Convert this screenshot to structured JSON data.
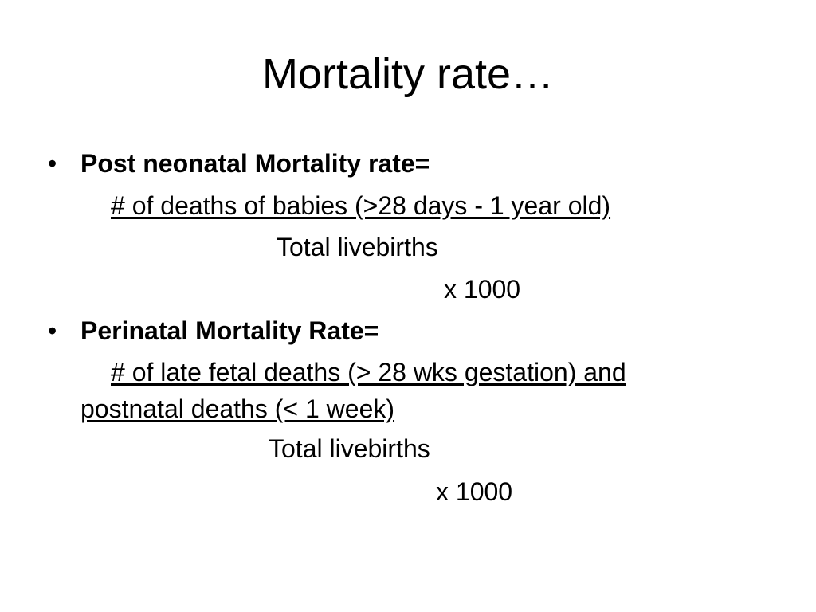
{
  "slide": {
    "title": "Mortality rate…",
    "bullet_glyph": "•",
    "items": [
      {
        "heading": "Post neonatal Mortality rate=",
        "numerator": [
          "# of deaths of babies (>28 days - 1 year old)"
        ],
        "denominator": "Total livebirths",
        "multiplier": "x 1000"
      },
      {
        "heading": "Perinatal Mortality Rate=",
        "numerator": [
          "# of late fetal deaths (> 28 wks gestation) and",
          "postnatal deaths (< 1 week)"
        ],
        "denominator": "Total livebirths",
        "multiplier": "x 1000"
      }
    ]
  }
}
